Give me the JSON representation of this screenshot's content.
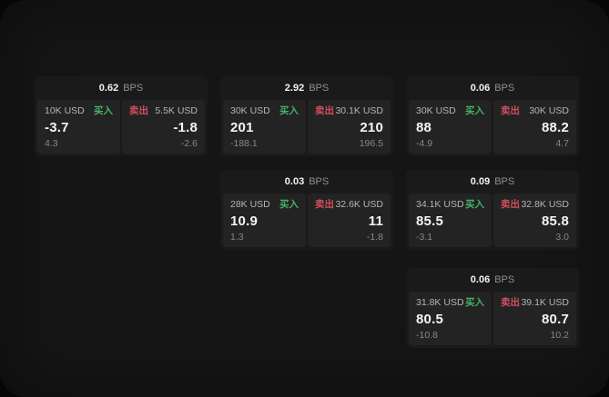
{
  "labels": {
    "unit": "BPS",
    "buy": "买入",
    "sell": "卖出"
  },
  "colors": {
    "buy_green": "#46b169",
    "sell_red": "#d14f5f",
    "page_bg": "#151515",
    "card_bg": "#1a1a1a",
    "panel_bg": "#232323"
  },
  "cards": [
    {
      "bps": "0.62",
      "buy": {
        "size": "10K USD",
        "price": "-3.7",
        "delta": "4.3"
      },
      "sell": {
        "size": "5.5K USD",
        "price": "-1.8",
        "delta": "-2.6"
      }
    },
    {
      "bps": "2.92",
      "buy": {
        "size": "30K USD",
        "price": "201",
        "delta": "-188.1"
      },
      "sell": {
        "size": "30.1K USD",
        "price": "210",
        "delta": "196.5"
      }
    },
    {
      "bps": "0.06",
      "buy": {
        "size": "30K USD",
        "price": "88",
        "delta": "-4.9"
      },
      "sell": {
        "size": "30K USD",
        "price": "88.2",
        "delta": "4.7"
      }
    },
    {
      "bps": "0.03",
      "buy": {
        "size": "28K USD",
        "price": "10.9",
        "delta": "1.3"
      },
      "sell": {
        "size": "32.6K USD",
        "price": "11",
        "delta": "-1.8"
      }
    },
    {
      "bps": "0.09",
      "buy": {
        "size": "34.1K USD",
        "price": "85.5",
        "delta": "-3.1"
      },
      "sell": {
        "size": "32.8K USD",
        "price": "85.8",
        "delta": "3.0"
      }
    },
    {
      "bps": "0.06",
      "buy": {
        "size": "31.8K USD",
        "price": "80.5",
        "delta": "-10.8"
      },
      "sell": {
        "size": "39.1K USD",
        "price": "80.7",
        "delta": "10.2"
      }
    }
  ]
}
